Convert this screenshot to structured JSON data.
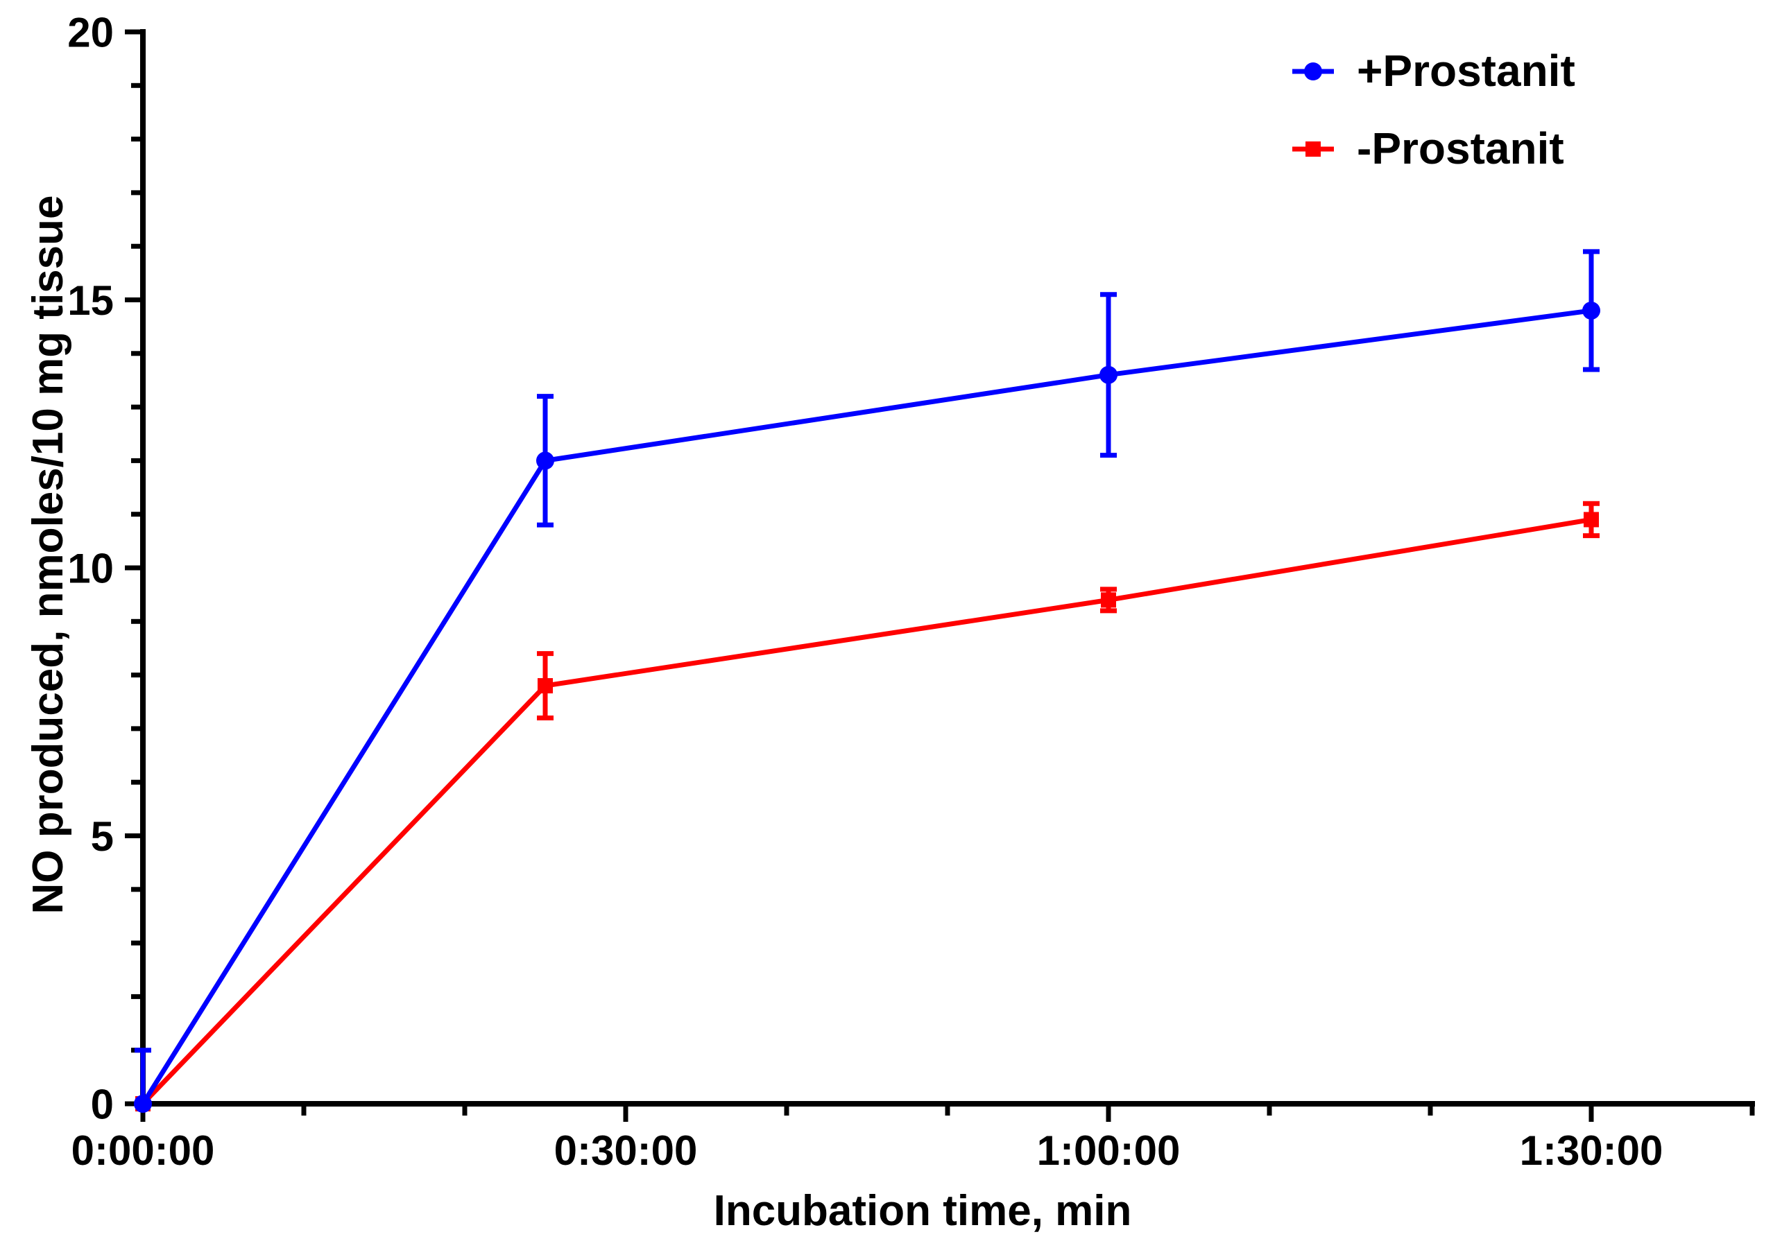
{
  "chart_data": {
    "type": "line",
    "title": "",
    "error_bars": true,
    "axis_color": "#000000",
    "background_color": "#ffffff",
    "grid": false,
    "x_axis": {
      "label": "Incubation time, min",
      "range_minutes": [
        0,
        100
      ],
      "major_ticks": [
        {
          "minutes": 0,
          "label": "0:00:00"
        },
        {
          "minutes": 30,
          "label": "0:30:00"
        },
        {
          "minutes": 60,
          "label": "1:00:00"
        },
        {
          "minutes": 90,
          "label": "1:30:00"
        }
      ],
      "minor_tick_minutes": [
        10,
        20,
        40,
        50,
        70,
        80,
        100
      ]
    },
    "y_axis": {
      "label": "NO produced, nmoles/10 mg tissue",
      "range": [
        0,
        20
      ],
      "major_tick_step": 5,
      "minor_tick_step": 1,
      "major_ticks": [
        {
          "value": 0,
          "label": "0"
        },
        {
          "value": 5,
          "label": "5"
        },
        {
          "value": 10,
          "label": "10"
        },
        {
          "value": 15,
          "label": "15"
        },
        {
          "value": 20,
          "label": "20"
        }
      ]
    },
    "series": [
      {
        "name": "+Prostanit",
        "color": "#0000ff",
        "marker": "circle",
        "points": [
          {
            "x_minutes": 0,
            "y": 0.0,
            "err_plus": 1.0,
            "err_minus": 0.0
          },
          {
            "x_minutes": 25,
            "y": 12.0,
            "err_plus": 1.2,
            "err_minus": 1.2
          },
          {
            "x_minutes": 60,
            "y": 13.6,
            "err_plus": 1.5,
            "err_minus": 1.5
          },
          {
            "x_minutes": 90,
            "y": 14.8,
            "err_plus": 1.1,
            "err_minus": 1.1
          }
        ]
      },
      {
        "name": "-Prostanit",
        "color": "#ff0000",
        "marker": "square",
        "points": [
          {
            "x_minutes": 0,
            "y": 0.0,
            "err_plus": 0.0,
            "err_minus": 0.0
          },
          {
            "x_minutes": 25,
            "y": 7.8,
            "err_plus": 0.6,
            "err_minus": 0.6
          },
          {
            "x_minutes": 60,
            "y": 9.4,
            "err_plus": 0.2,
            "err_minus": 0.2
          },
          {
            "x_minutes": 90,
            "y": 10.9,
            "err_plus": 0.3,
            "err_minus": 0.3
          }
        ]
      }
    ],
    "legend": {
      "position": "top-right",
      "items": [
        "+Prostanit",
        "-Prostanit"
      ]
    }
  }
}
